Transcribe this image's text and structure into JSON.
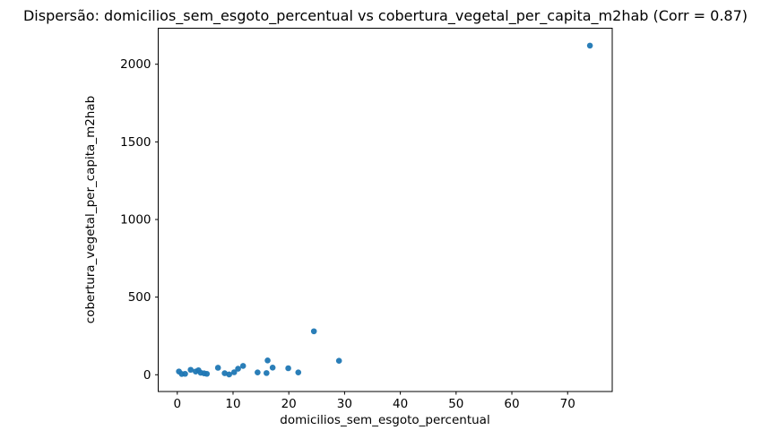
{
  "chart_data": {
    "type": "scatter",
    "title": "Dispersão: domicilios_sem_esgoto_percentual vs cobertura_vegetal_per_capita_m2hab (Corr = 0.87)",
    "xlabel": "domicilios_sem_esgoto_percentual",
    "ylabel": "cobertura_vegetal_per_capita_m2hab",
    "correlation": 0.87,
    "xlim": [
      -3.42,
      78.0
    ],
    "ylim": [
      -108,
      2232
    ],
    "xticks": [
      0,
      10,
      20,
      30,
      40,
      50,
      60,
      70
    ],
    "yticks": [
      0,
      500,
      1000,
      1500,
      2000
    ],
    "grid": false,
    "legend": null,
    "marker_color": "#1f77b4",
    "background_color": "#ffffff",
    "spine_color": "#000000",
    "points": [
      [
        0.3,
        21
      ],
      [
        0.8,
        5
      ],
      [
        1.4,
        6
      ],
      [
        2.4,
        32
      ],
      [
        3.3,
        21
      ],
      [
        3.8,
        29
      ],
      [
        4.2,
        13
      ],
      [
        4.8,
        9
      ],
      [
        5.3,
        6
      ],
      [
        7.3,
        45
      ],
      [
        8.5,
        10
      ],
      [
        9.3,
        2
      ],
      [
        10.2,
        16
      ],
      [
        10.9,
        39
      ],
      [
        11.8,
        57
      ],
      [
        14.4,
        15
      ],
      [
        16.0,
        11
      ],
      [
        16.2,
        92
      ],
      [
        17.1,
        46
      ],
      [
        19.9,
        42
      ],
      [
        21.7,
        15
      ],
      [
        24.5,
        280
      ],
      [
        29.0,
        90
      ],
      [
        74.0,
        2120
      ]
    ]
  }
}
